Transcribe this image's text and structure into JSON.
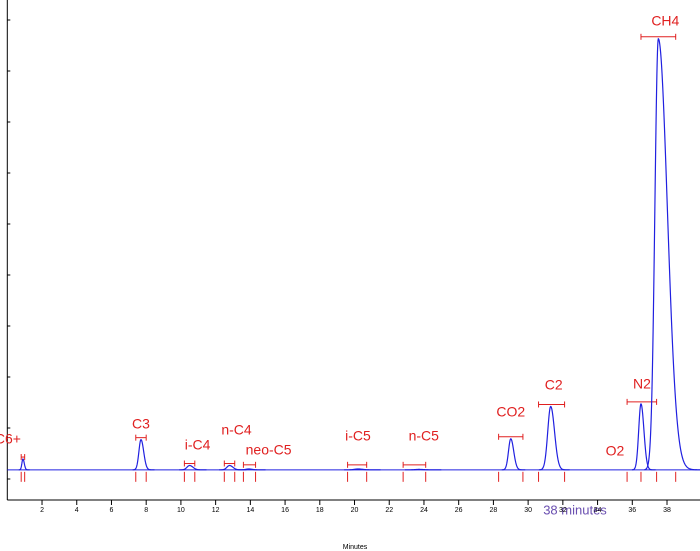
{
  "chart_data": {
    "type": "chromatogram",
    "x_label": "Minutes",
    "annotation": "38 minutes",
    "xlim": [
      0,
      39.9
    ],
    "ylim": [
      -7,
      109
    ],
    "xticks": [
      2,
      4,
      6,
      8,
      10,
      12,
      14,
      16,
      18,
      20,
      22,
      24,
      26,
      28,
      30,
      32,
      34,
      36,
      38
    ],
    "trace_color": "#2020e0",
    "label_color": "#e02020",
    "components": [
      {
        "name": "C6+",
        "time": 0.9,
        "height": 2.5,
        "width": 0.06,
        "window": [
          0.8,
          1.0
        ]
      },
      {
        "name": "C3",
        "time": 7.7,
        "height": 7,
        "width": 0.12,
        "window": [
          7.4,
          8.0
        ]
      },
      {
        "name": "i-C4",
        "time": 10.5,
        "height": 1,
        "width": 0.15,
        "window": [
          10.2,
          10.8
        ]
      },
      {
        "name": "n-C4",
        "time": 12.8,
        "height": 1,
        "width": 0.15,
        "window": [
          12.5,
          13.1
        ]
      },
      {
        "name": "neo-C5",
        "time": 13.9,
        "height": 0.2,
        "width": 0.15,
        "window": [
          13.6,
          14.3
        ]
      },
      {
        "name": "i-C5",
        "time": 20.2,
        "height": 0.2,
        "width": 0.2,
        "window": [
          19.6,
          20.7
        ]
      },
      {
        "name": "n-C5",
        "time": 23.7,
        "height": 0.1,
        "width": 0.2,
        "window": [
          22.8,
          24.1
        ]
      },
      {
        "name": "CO2",
        "time": 29.0,
        "height": 7.2,
        "width": 0.13,
        "window": [
          28.3,
          29.7
        ]
      },
      {
        "name": "C2",
        "time": 31.3,
        "height": 14.7,
        "width": 0.17,
        "window": [
          30.6,
          32.1
        ]
      },
      {
        "name": "O2",
        "time": 35.0,
        "height": null,
        "width": null,
        "window": null
      },
      {
        "name": "N2",
        "time": 36.5,
        "height": 15.3,
        "width": 0.13,
        "window": [
          35.7,
          37.4
        ]
      },
      {
        "name": "CH4",
        "time": 37.5,
        "height": 100,
        "width": 0.2,
        "window": [
          36.5,
          38.5
        ]
      }
    ]
  }
}
